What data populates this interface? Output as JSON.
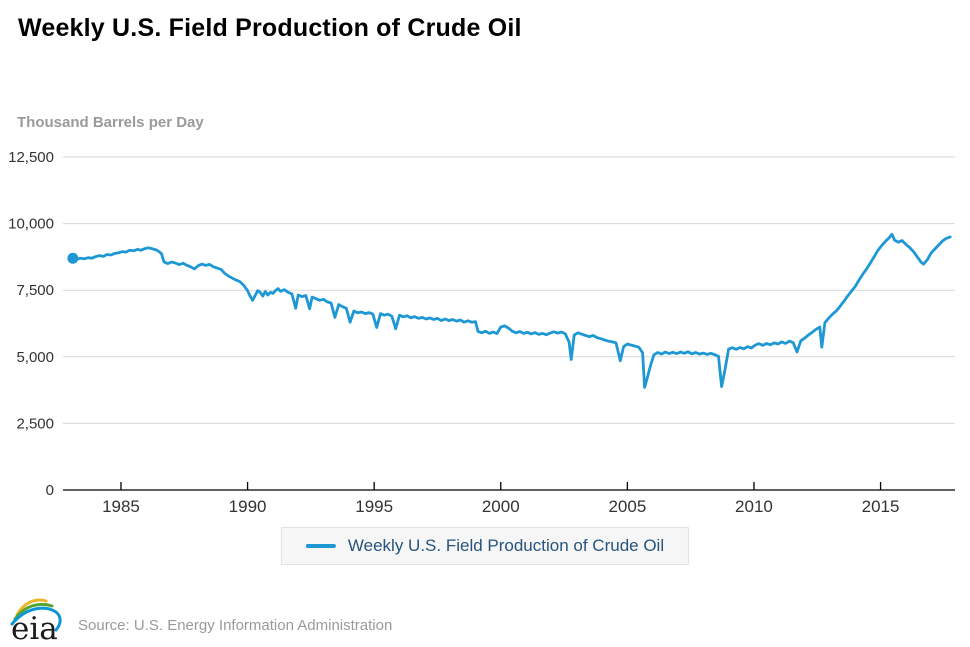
{
  "page": {
    "title": "Weekly U.S. Field Production of Crude Oil",
    "unit_label": "Thousand Barrels per Day",
    "source": "Source: U.S. Energy Information Administration",
    "logo_text": "eia"
  },
  "legend": {
    "label": "Weekly U.S. Field Production of Crude Oil"
  },
  "chart_data": {
    "type": "line",
    "title": "Weekly U.S. Field Production of Crude Oil",
    "xlabel": "",
    "ylabel": "Thousand Barrels per Day",
    "xlim": [
      1982.71,
      2017.94
    ],
    "ylim": [
      0,
      12500
    ],
    "xticks": [
      1985,
      1990,
      1995,
      2000,
      2005,
      2010,
      2015
    ],
    "yticks": [
      0,
      2500,
      5000,
      7500,
      10000,
      12500
    ],
    "ytick_labels": [
      "0",
      "2,500",
      "5,000",
      "7,500",
      "10,000",
      "12,500"
    ],
    "grid": "horizontal-only",
    "legend_position": "bottom-center",
    "colors": {
      "line": "#1e98d5",
      "grid": "#d9d9d9",
      "axis": "#000000",
      "tick_text": "#333333"
    },
    "series": [
      {
        "name": "Weekly U.S. Field Production of Crude Oil",
        "units": "thousand barrels per day",
        "marker_on_first_point": true,
        "points": [
          [
            1983.1,
            8700
          ],
          [
            1983.25,
            8660
          ],
          [
            1983.4,
            8700
          ],
          [
            1983.55,
            8680
          ],
          [
            1983.7,
            8720
          ],
          [
            1983.85,
            8700
          ],
          [
            1984.0,
            8760
          ],
          [
            1984.15,
            8800
          ],
          [
            1984.3,
            8770
          ],
          [
            1984.45,
            8840
          ],
          [
            1984.6,
            8820
          ],
          [
            1984.75,
            8880
          ],
          [
            1984.9,
            8900
          ],
          [
            1985.05,
            8950
          ],
          [
            1985.2,
            8930
          ],
          [
            1985.35,
            9000
          ],
          [
            1985.5,
            8980
          ],
          [
            1985.65,
            9030
          ],
          [
            1985.8,
            9000
          ],
          [
            1985.95,
            9060
          ],
          [
            1986.1,
            9090
          ],
          [
            1986.25,
            9050
          ],
          [
            1986.4,
            9010
          ],
          [
            1986.5,
            8950
          ],
          [
            1986.6,
            8870
          ],
          [
            1986.7,
            8560
          ],
          [
            1986.85,
            8500
          ],
          [
            1987.0,
            8560
          ],
          [
            1987.15,
            8520
          ],
          [
            1987.3,
            8460
          ],
          [
            1987.45,
            8510
          ],
          [
            1987.6,
            8440
          ],
          [
            1987.75,
            8380
          ],
          [
            1987.9,
            8300
          ],
          [
            1988.05,
            8420
          ],
          [
            1988.2,
            8480
          ],
          [
            1988.35,
            8430
          ],
          [
            1988.5,
            8470
          ],
          [
            1988.65,
            8380
          ],
          [
            1988.8,
            8330
          ],
          [
            1988.95,
            8280
          ],
          [
            1989.1,
            8130
          ],
          [
            1989.25,
            8030
          ],
          [
            1989.4,
            7950
          ],
          [
            1989.55,
            7880
          ],
          [
            1989.7,
            7820
          ],
          [
            1989.85,
            7680
          ],
          [
            1990.0,
            7480
          ],
          [
            1990.1,
            7280
          ],
          [
            1990.2,
            7120
          ],
          [
            1990.3,
            7300
          ],
          [
            1990.4,
            7480
          ],
          [
            1990.5,
            7420
          ],
          [
            1990.6,
            7280
          ],
          [
            1990.7,
            7450
          ],
          [
            1990.8,
            7320
          ],
          [
            1990.9,
            7420
          ],
          [
            1991.0,
            7380
          ],
          [
            1991.1,
            7480
          ],
          [
            1991.2,
            7560
          ],
          [
            1991.3,
            7460
          ],
          [
            1991.45,
            7520
          ],
          [
            1991.6,
            7420
          ],
          [
            1991.75,
            7360
          ],
          [
            1991.9,
            6820
          ],
          [
            1992.0,
            7320
          ],
          [
            1992.15,
            7260
          ],
          [
            1992.3,
            7300
          ],
          [
            1992.45,
            6800
          ],
          [
            1992.55,
            7240
          ],
          [
            1992.7,
            7180
          ],
          [
            1992.85,
            7120
          ],
          [
            1993.0,
            7160
          ],
          [
            1993.15,
            7060
          ],
          [
            1993.3,
            7020
          ],
          [
            1993.45,
            6480
          ],
          [
            1993.6,
            6960
          ],
          [
            1993.75,
            6880
          ],
          [
            1993.9,
            6820
          ],
          [
            1994.05,
            6300
          ],
          [
            1994.2,
            6720
          ],
          [
            1994.35,
            6650
          ],
          [
            1994.5,
            6680
          ],
          [
            1994.65,
            6620
          ],
          [
            1994.8,
            6660
          ],
          [
            1994.95,
            6600
          ],
          [
            1995.1,
            6100
          ],
          [
            1995.25,
            6620
          ],
          [
            1995.4,
            6560
          ],
          [
            1995.55,
            6600
          ],
          [
            1995.7,
            6520
          ],
          [
            1995.85,
            6050
          ],
          [
            1996.0,
            6560
          ],
          [
            1996.15,
            6500
          ],
          [
            1996.3,
            6540
          ],
          [
            1996.45,
            6460
          ],
          [
            1996.6,
            6510
          ],
          [
            1996.75,
            6440
          ],
          [
            1996.9,
            6480
          ],
          [
            1997.05,
            6420
          ],
          [
            1997.2,
            6460
          ],
          [
            1997.35,
            6400
          ],
          [
            1997.5,
            6440
          ],
          [
            1997.65,
            6360
          ],
          [
            1997.8,
            6420
          ],
          [
            1997.95,
            6360
          ],
          [
            1998.1,
            6400
          ],
          [
            1998.25,
            6340
          ],
          [
            1998.4,
            6380
          ],
          [
            1998.55,
            6300
          ],
          [
            1998.7,
            6350
          ],
          [
            1998.85,
            6300
          ],
          [
            1999.0,
            6320
          ],
          [
            1999.1,
            5950
          ],
          [
            1999.25,
            5900
          ],
          [
            1999.4,
            5960
          ],
          [
            1999.55,
            5880
          ],
          [
            1999.7,
            5930
          ],
          [
            1999.85,
            5870
          ],
          [
            2000.0,
            6120
          ],
          [
            2000.15,
            6160
          ],
          [
            2000.3,
            6080
          ],
          [
            2000.45,
            5960
          ],
          [
            2000.6,
            5900
          ],
          [
            2000.75,
            5950
          ],
          [
            2000.9,
            5880
          ],
          [
            2001.05,
            5920
          ],
          [
            2001.2,
            5860
          ],
          [
            2001.35,
            5910
          ],
          [
            2001.5,
            5840
          ],
          [
            2001.65,
            5880
          ],
          [
            2001.8,
            5830
          ],
          [
            2001.95,
            5890
          ],
          [
            2002.1,
            5940
          ],
          [
            2002.25,
            5890
          ],
          [
            2002.4,
            5930
          ],
          [
            2002.55,
            5860
          ],
          [
            2002.7,
            5550
          ],
          [
            2002.78,
            4900
          ],
          [
            2002.9,
            5820
          ],
          [
            2003.05,
            5900
          ],
          [
            2003.2,
            5850
          ],
          [
            2003.35,
            5800
          ],
          [
            2003.5,
            5760
          ],
          [
            2003.65,
            5800
          ],
          [
            2003.8,
            5720
          ],
          [
            2003.95,
            5680
          ],
          [
            2004.1,
            5630
          ],
          [
            2004.25,
            5590
          ],
          [
            2004.4,
            5560
          ],
          [
            2004.55,
            5520
          ],
          [
            2004.72,
            4850
          ],
          [
            2004.85,
            5380
          ],
          [
            2005.0,
            5480
          ],
          [
            2005.15,
            5440
          ],
          [
            2005.3,
            5400
          ],
          [
            2005.45,
            5360
          ],
          [
            2005.6,
            5150
          ],
          [
            2005.68,
            3850
          ],
          [
            2005.8,
            4250
          ],
          [
            2005.92,
            4700
          ],
          [
            2006.05,
            5080
          ],
          [
            2006.2,
            5160
          ],
          [
            2006.35,
            5100
          ],
          [
            2006.5,
            5180
          ],
          [
            2006.65,
            5120
          ],
          [
            2006.8,
            5170
          ],
          [
            2006.95,
            5120
          ],
          [
            2007.1,
            5180
          ],
          [
            2007.25,
            5130
          ],
          [
            2007.4,
            5190
          ],
          [
            2007.55,
            5110
          ],
          [
            2007.7,
            5160
          ],
          [
            2007.85,
            5100
          ],
          [
            2008.0,
            5140
          ],
          [
            2008.15,
            5090
          ],
          [
            2008.3,
            5130
          ],
          [
            2008.45,
            5080
          ],
          [
            2008.6,
            5020
          ],
          [
            2008.72,
            3880
          ],
          [
            2008.85,
            4480
          ],
          [
            2009.0,
            5290
          ],
          [
            2009.15,
            5340
          ],
          [
            2009.3,
            5280
          ],
          [
            2009.45,
            5350
          ],
          [
            2009.6,
            5300
          ],
          [
            2009.75,
            5380
          ],
          [
            2009.9,
            5330
          ],
          [
            2010.05,
            5440
          ],
          [
            2010.2,
            5490
          ],
          [
            2010.35,
            5430
          ],
          [
            2010.5,
            5500
          ],
          [
            2010.65,
            5450
          ],
          [
            2010.8,
            5520
          ],
          [
            2010.95,
            5480
          ],
          [
            2011.1,
            5560
          ],
          [
            2011.25,
            5500
          ],
          [
            2011.4,
            5590
          ],
          [
            2011.55,
            5530
          ],
          [
            2011.7,
            5180
          ],
          [
            2011.85,
            5600
          ],
          [
            2012.0,
            5700
          ],
          [
            2012.15,
            5820
          ],
          [
            2012.3,
            5920
          ],
          [
            2012.45,
            6030
          ],
          [
            2012.6,
            6120
          ],
          [
            2012.68,
            5360
          ],
          [
            2012.8,
            6280
          ],
          [
            2012.95,
            6450
          ],
          [
            2013.1,
            6600
          ],
          [
            2013.25,
            6720
          ],
          [
            2013.4,
            6900
          ],
          [
            2013.55,
            7080
          ],
          [
            2013.7,
            7280
          ],
          [
            2013.85,
            7460
          ],
          [
            2014.0,
            7640
          ],
          [
            2014.15,
            7880
          ],
          [
            2014.3,
            8100
          ],
          [
            2014.45,
            8300
          ],
          [
            2014.6,
            8520
          ],
          [
            2014.75,
            8760
          ],
          [
            2014.9,
            9000
          ],
          [
            2015.05,
            9180
          ],
          [
            2015.2,
            9340
          ],
          [
            2015.35,
            9480
          ],
          [
            2015.45,
            9600
          ],
          [
            2015.55,
            9380
          ],
          [
            2015.7,
            9300
          ],
          [
            2015.85,
            9360
          ],
          [
            2016.0,
            9220
          ],
          [
            2016.15,
            9100
          ],
          [
            2016.3,
            8950
          ],
          [
            2016.45,
            8750
          ],
          [
            2016.6,
            8550
          ],
          [
            2016.7,
            8480
          ],
          [
            2016.85,
            8650
          ],
          [
            2017.0,
            8900
          ],
          [
            2017.15,
            9050
          ],
          [
            2017.3,
            9200
          ],
          [
            2017.45,
            9350
          ],
          [
            2017.6,
            9450
          ],
          [
            2017.75,
            9500
          ]
        ]
      }
    ]
  }
}
